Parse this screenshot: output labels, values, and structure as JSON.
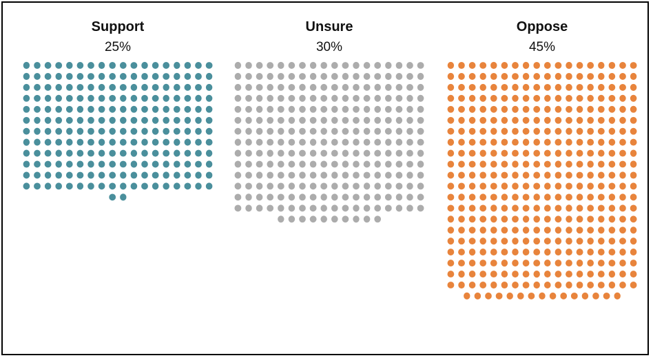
{
  "chart_data": {
    "type": "waffle",
    "dots_per_row": 18,
    "categories": [
      {
        "name": "Support",
        "value_label": "25%",
        "value": 25,
        "dot_count": 218,
        "color": "#4a8f9c"
      },
      {
        "name": "Unsure",
        "value_label": "30%",
        "value": 30,
        "dot_count": 262,
        "color": "#acacac"
      },
      {
        "name": "Oppose",
        "value_label": "45%",
        "value": 45,
        "dot_count": 393,
        "color": "#e8843c"
      }
    ]
  }
}
